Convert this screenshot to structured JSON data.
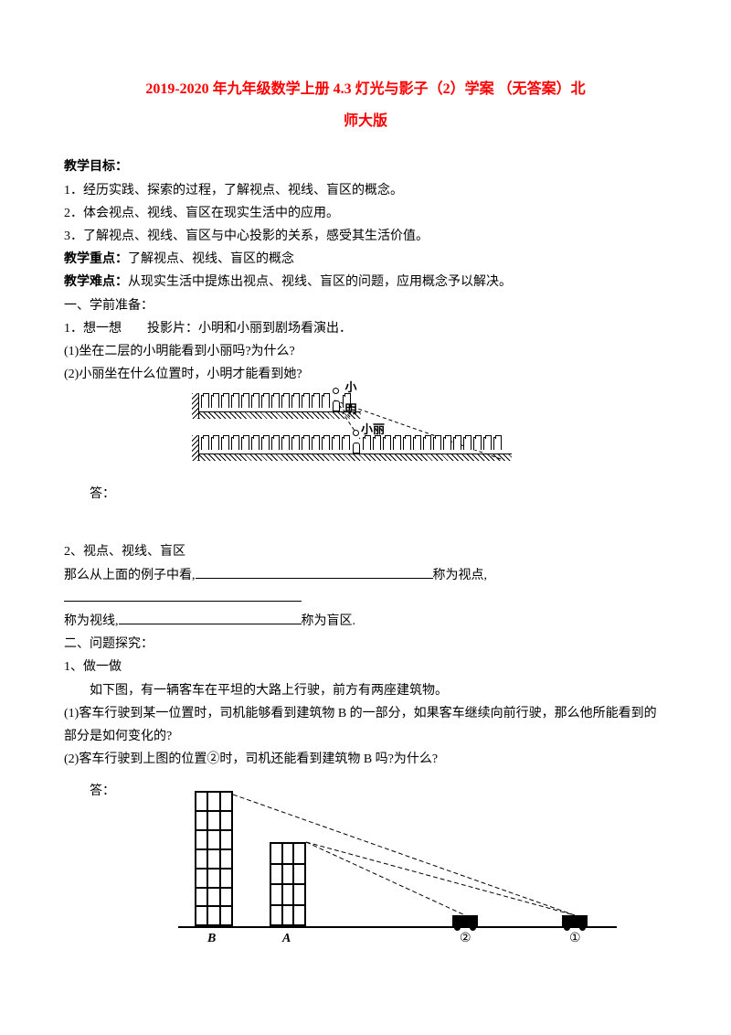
{
  "title_line1": "2019-2020 年九年级数学上册 4.3 灯光与影子（2）学案 （无答案）北",
  "title_line2": "师大版",
  "labels": {
    "goal": "教学目标：",
    "keypoint": "教学重点：",
    "difficulty": "教学难点：",
    "answer": "答："
  },
  "goals": [
    "1．经历实践、探索的过程，了解视点、视线、盲区的概念。",
    "2．体会视点、视线、盲区在现实生活中的应用。",
    "3．了解视点、视线、盲区与中心投影的关系，感受其生活价值。"
  ],
  "keypoint_text": "了解视点、视线、盲区的概念",
  "difficulty_text": "从现实生活中提炼出视点、视线、盲区的问题，应用概念予以解决。",
  "sec1_header": "一、学前准备：",
  "sec1_item1": "1．想一想　　投影片：小明和小丽到剧场看演出．",
  "sec1_q1": "(1)坐在二层的小明能看到小丽吗?为什么?",
  "sec1_q2": "(2)小丽坐在什么位置时，小明才能看到她?",
  "fig1": {
    "label_ming": "小明",
    "label_li": "小丽",
    "upper_seats": 15,
    "lower_seats": 30,
    "ming_index": 13,
    "li_index": 15
  },
  "sec1_item2": "2、视点、视线、盲区",
  "sec1_fill_a": "那么从上面的例子中看,",
  "sec1_fill_b": "称为视点,",
  "sec1_fill_c": "称为视线,",
  "sec1_fill_d": "称为盲区.",
  "sec2_header": "二、问题探究：",
  "sec2_item1": "1、做一做",
  "sec2_intro": "如下图，有一辆客车在平坦的大路上行驶，前方有两座建筑物。",
  "sec2_q1": "(1)客车行驶到某一位置时，司机能够看到建筑物 B 的一部分，如果客车继续向前行驶，那么他所能看到的部分是如何变化的?",
  "sec2_q2": "(2)客车行驶到上图的位置②时，司机还能看到建筑物 B 吗?为什么?",
  "fig2": {
    "labelB": "B",
    "labelA": "A",
    "label2": "②",
    "label1": "①",
    "floorsB": 7,
    "colsB": 3,
    "floorsA": 4,
    "colsA": 3
  }
}
